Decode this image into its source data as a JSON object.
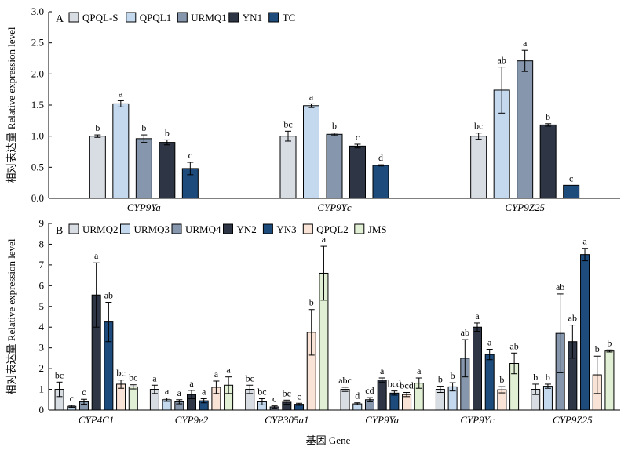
{
  "xlabel": "基因 Gene",
  "chart_data": [
    {
      "type": "bar",
      "panel_label": "A",
      "ylabel": "相对表达量 Relative expression level",
      "ylim": [
        0,
        3.0
      ],
      "yticks": [
        0.0,
        0.5,
        1.0,
        1.5,
        2.0,
        2.5,
        3.0
      ],
      "ytick_labels": [
        "0.0",
        "0.5",
        "1.0",
        "1.5",
        "2.0",
        "2.5",
        "3.0"
      ],
      "categories": [
        "CYP9Ya",
        "CYP9Yc",
        "CYP9Z25"
      ],
      "legend_position": "top-left",
      "series": [
        {
          "name": "QPQL-S",
          "color": "#d8dde3",
          "values": [
            1.0,
            1.0,
            1.0
          ],
          "errors": [
            0.02,
            0.08,
            0.05
          ],
          "labels": [
            "b",
            "bc",
            "bc"
          ]
        },
        {
          "name": "QPQL1",
          "color": "#c4d9ee",
          "values": [
            1.52,
            1.49,
            1.74
          ],
          "errors": [
            0.05,
            0.03,
            0.37
          ],
          "labels": [
            "a",
            "a",
            "ab"
          ]
        },
        {
          "name": "URMQ1",
          "color": "#8596ad",
          "values": [
            0.96,
            1.03,
            2.21
          ],
          "errors": [
            0.06,
            0.02,
            0.17
          ],
          "labels": [
            "b",
            "b",
            "a"
          ]
        },
        {
          "name": "YN1",
          "color": "#2e3646",
          "values": [
            0.9,
            0.84,
            1.18
          ],
          "errors": [
            0.04,
            0.03,
            0.02
          ],
          "labels": [
            "b",
            "c",
            "b"
          ]
        },
        {
          "name": "TC",
          "color": "#1c4b7c",
          "values": [
            0.48,
            0.53,
            0.21
          ],
          "errors": [
            0.1,
            0.01,
            0.0
          ],
          "labels": [
            "c",
            "d",
            "c"
          ]
        }
      ]
    },
    {
      "type": "bar",
      "panel_label": "B",
      "ylabel": "相对表达量 Relative expression level",
      "ylim": [
        0,
        9
      ],
      "yticks": [
        0,
        1,
        2,
        3,
        4,
        5,
        6,
        7,
        8,
        9
      ],
      "ytick_labels": [
        "0",
        "1",
        "2",
        "3",
        "4",
        "5",
        "6",
        "7",
        "8",
        "9"
      ],
      "categories": [
        "CYP4C1",
        "CYP9e2",
        "CYP305a1",
        "CYP9Ya",
        "CYP9Yc",
        "CYP9Z25"
      ],
      "legend_position": "top-left",
      "series": [
        {
          "name": "URMQ2",
          "color": "#d8dde3",
          "values": [
            1.0,
            1.0,
            1.0,
            1.0,
            1.0,
            1.0
          ],
          "errors": [
            0.35,
            0.2,
            0.2,
            0.1,
            0.15,
            0.25
          ],
          "labels": [
            "bc",
            "a",
            "bc",
            "abc",
            "b",
            "b"
          ]
        },
        {
          "name": "URMQ3",
          "color": "#c4d9ee",
          "values": [
            0.18,
            0.5,
            0.4,
            0.3,
            1.12,
            1.15
          ],
          "errors": [
            0.05,
            0.08,
            0.15,
            0.05,
            0.2,
            0.1
          ],
          "labels": [
            "c",
            "a",
            "bc",
            "d",
            "b",
            "b"
          ]
        },
        {
          "name": "URMQ4",
          "color": "#8596ad",
          "values": [
            0.4,
            0.4,
            0.15,
            0.5,
            2.5,
            3.7
          ],
          "errors": [
            0.12,
            0.1,
            0.05,
            0.1,
            0.9,
            1.9
          ],
          "labels": [
            "c",
            "a",
            "c",
            "cd",
            "ab",
            "ab"
          ]
        },
        {
          "name": "YN2",
          "color": "#2e3646",
          "values": [
            5.55,
            0.75,
            0.38,
            1.45,
            4.0,
            3.3
          ],
          "errors": [
            1.55,
            0.2,
            0.1,
            0.1,
            0.2,
            0.8
          ],
          "labels": [
            "a",
            "a",
            "bc",
            "a",
            "a",
            "ab"
          ]
        },
        {
          "name": "YN3",
          "color": "#1c4b7c",
          "values": [
            4.25,
            0.45,
            0.28,
            0.82,
            2.68,
            7.5
          ],
          "errors": [
            0.95,
            0.1,
            0.05,
            0.1,
            0.25,
            0.3
          ],
          "labels": [
            "ab",
            "a",
            "c",
            "bcd",
            "a",
            "a"
          ]
        },
        {
          "name": "QPQL2",
          "color": "#f8e3d6",
          "values": [
            1.25,
            1.1,
            3.75,
            0.75,
            0.98,
            1.7
          ],
          "errors": [
            0.2,
            0.3,
            1.1,
            0.1,
            0.15,
            0.9
          ],
          "labels": [
            "bc",
            "a",
            "b",
            "bcd",
            "b",
            "b"
          ]
        },
        {
          "name": "JMS",
          "color": "#e1f0d4",
          "values": [
            1.12,
            1.2,
            6.6,
            1.3,
            2.25,
            2.85
          ],
          "errors": [
            0.1,
            0.4,
            1.3,
            0.25,
            0.5,
            0.05
          ],
          "labels": [
            "bc",
            "a",
            "a",
            "a",
            "ab",
            "b"
          ]
        }
      ]
    }
  ]
}
